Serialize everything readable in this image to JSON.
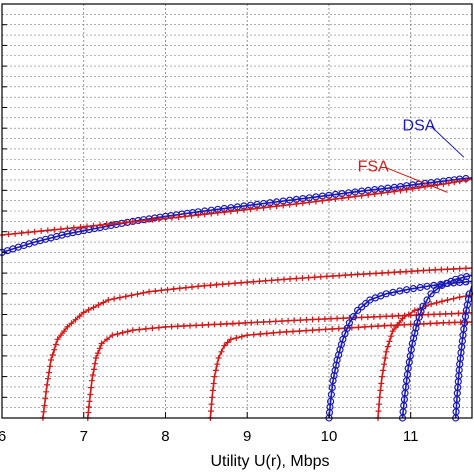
{
  "chart_data": {
    "type": "line",
    "title": "",
    "xlabel": "Utility U(r), Mbps",
    "ylabel": "",
    "xlim": [
      6,
      11.75
    ],
    "ylim": [
      0,
      1
    ],
    "x_ticks": [
      "6",
      "7",
      "8",
      "9",
      "10",
      "11"
    ],
    "grid": true,
    "colors": {
      "DSA": "#1a1ab4",
      "FSA": "#d21a1a",
      "axis": "#000000",
      "grid": "#7a7a7a"
    },
    "annotations": [
      {
        "text": "DSA",
        "series": "DSA",
        "x": 10.9,
        "y": 0.695,
        "target_x": 11.65,
        "target_y": 0.63,
        "color": "#1a1ab4"
      },
      {
        "text": "FSA",
        "series": "FSA",
        "x": 10.35,
        "y": 0.595,
        "target_x": 11.45,
        "target_y": 0.545,
        "color": "#d21a1a"
      }
    ],
    "series": [
      {
        "name": "DSA",
        "color": "#1a1ab4",
        "marker": "circle",
        "x": [
          6.0,
          6.4,
          6.8,
          7.2,
          7.6,
          8.0,
          8.4,
          8.8,
          9.2,
          9.6,
          10.0,
          10.4,
          10.8,
          11.1,
          11.4,
          11.6,
          11.75
        ],
        "y": [
          0.4,
          0.425,
          0.445,
          0.46,
          0.475,
          0.487,
          0.498,
          0.508,
          0.518,
          0.528,
          0.538,
          0.548,
          0.557,
          0.565,
          0.572,
          0.577,
          0.58
        ]
      },
      {
        "name": "FSA",
        "color": "#d21a1a",
        "marker": "plus",
        "x": [
          6.0,
          6.4,
          6.8,
          7.2,
          7.6,
          8.0,
          8.4,
          8.8,
          9.2,
          9.6,
          10.0,
          10.4,
          10.8,
          11.1,
          11.4,
          11.6,
          11.75
        ],
        "y": [
          0.442,
          0.45,
          0.458,
          0.466,
          0.474,
          0.482,
          0.49,
          0.499,
          0.508,
          0.517,
          0.527,
          0.537,
          0.547,
          0.556,
          0.565,
          0.572,
          0.577
        ]
      },
      {
        "name": "FSA",
        "color": "#d21a1a",
        "marker": "plus",
        "x": [
          6.5,
          6.52,
          6.55,
          6.6,
          6.68,
          6.8,
          7.0,
          7.3,
          7.8,
          8.4,
          9.0,
          9.6,
          10.2,
          10.8,
          11.3,
          11.75
        ],
        "y": [
          0.0,
          0.03,
          0.08,
          0.14,
          0.19,
          0.22,
          0.255,
          0.285,
          0.305,
          0.318,
          0.328,
          0.337,
          0.345,
          0.352,
          0.358,
          0.362
        ]
      },
      {
        "name": "FSA",
        "color": "#d21a1a",
        "marker": "plus",
        "x": [
          7.05,
          7.07,
          7.1,
          7.15,
          7.22,
          7.35,
          7.6,
          8.0,
          8.6,
          9.2,
          9.8,
          10.4,
          11.0,
          11.5,
          11.75
        ],
        "y": [
          0.0,
          0.04,
          0.09,
          0.145,
          0.18,
          0.2,
          0.212,
          0.22,
          0.226,
          0.232,
          0.238,
          0.243,
          0.248,
          0.252,
          0.254
        ]
      },
      {
        "name": "FSA",
        "color": "#d21a1a",
        "marker": "plus",
        "x": [
          8.55,
          8.57,
          8.6,
          8.65,
          8.72,
          8.8,
          9.0,
          9.4,
          9.8,
          10.2,
          10.6,
          11.0,
          11.4,
          11.75
        ],
        "y": [
          0.0,
          0.05,
          0.1,
          0.145,
          0.175,
          0.19,
          0.2,
          0.207,
          0.212,
          0.217,
          0.222,
          0.226,
          0.23,
          0.232
        ]
      },
      {
        "name": "FSA",
        "color": "#d21a1a",
        "marker": "plus",
        "x": [
          10.6,
          10.62,
          10.65,
          10.7,
          10.78,
          10.9,
          11.05,
          11.25,
          11.45,
          11.6,
          11.75
        ],
        "y": [
          0.0,
          0.05,
          0.1,
          0.16,
          0.21,
          0.24,
          0.26,
          0.275,
          0.285,
          0.292,
          0.297
        ]
      },
      {
        "name": "DSA",
        "color": "#1a1ab4",
        "marker": "circle",
        "x": [
          10.0,
          10.02,
          10.05,
          10.1,
          10.17,
          10.25,
          10.35,
          10.5,
          10.7,
          10.95,
          11.2,
          11.45,
          11.75
        ],
        "y": [
          0.0,
          0.04,
          0.09,
          0.14,
          0.19,
          0.23,
          0.26,
          0.285,
          0.3,
          0.31,
          0.318,
          0.325,
          0.33
        ]
      },
      {
        "name": "DSA",
        "color": "#1a1ab4",
        "marker": "circle",
        "x": [
          10.9,
          10.93,
          10.97,
          11.02,
          11.08,
          11.15,
          11.25,
          11.38,
          11.55,
          11.75
        ],
        "y": [
          0.0,
          0.06,
          0.12,
          0.18,
          0.23,
          0.27,
          0.3,
          0.32,
          0.335,
          0.345
        ]
      },
      {
        "name": "DSA",
        "color": "#1a1ab4",
        "marker": "circle",
        "x": [
          11.55,
          11.57,
          11.6,
          11.64,
          11.68,
          11.72,
          11.75
        ],
        "y": [
          0.0,
          0.06,
          0.13,
          0.2,
          0.26,
          0.3,
          0.32
        ]
      }
    ]
  }
}
